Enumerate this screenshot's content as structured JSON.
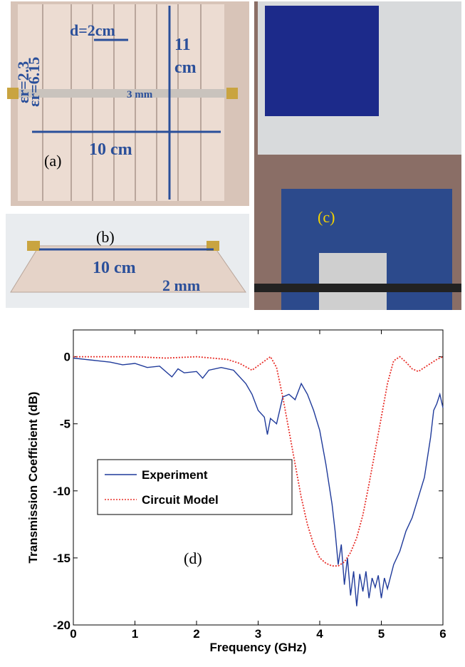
{
  "photos": {
    "a": {
      "label": "(a)",
      "spacing": "d=2cm",
      "eps1": "εr=6.15",
      "eps2": "εr=2.3",
      "strip": "3 mm",
      "height_num": "11",
      "height_unit": "cm",
      "width": "10 cm"
    },
    "b": {
      "label": "(b)",
      "width": "10 cm",
      "thickness": "2 mm"
    },
    "c": {
      "label": "(c)"
    }
  },
  "chart_data": {
    "type": "line",
    "annotation": "(d)",
    "x_label": "Frequency (GHz)",
    "y_label": "Transmission Coefficient (dB)",
    "xlim": [
      0,
      6
    ],
    "ylim": [
      -20,
      2
    ],
    "xticks": [
      0,
      1,
      2,
      3,
      4,
      5,
      6
    ],
    "yticks": [
      -20,
      -15,
      -10,
      -5,
      0
    ],
    "legend": "center-left",
    "series": [
      {
        "name": "Experiment",
        "color": "#1f3a9a",
        "style": "solid",
        "x": [
          0,
          0.2,
          0.4,
          0.6,
          0.8,
          1.0,
          1.2,
          1.4,
          1.6,
          1.7,
          1.8,
          2.0,
          2.1,
          2.2,
          2.4,
          2.6,
          2.8,
          2.9,
          3.0,
          3.1,
          3.15,
          3.2,
          3.3,
          3.4,
          3.5,
          3.6,
          3.7,
          3.8,
          3.9,
          4.0,
          4.1,
          4.2,
          4.25,
          4.3,
          4.35,
          4.4,
          4.45,
          4.5,
          4.55,
          4.6,
          4.65,
          4.7,
          4.75,
          4.8,
          4.85,
          4.9,
          4.95,
          5.0,
          5.05,
          5.1,
          5.2,
          5.3,
          5.4,
          5.5,
          5.6,
          5.7,
          5.8,
          5.85,
          5.9,
          5.95,
          6.0
        ],
        "values": [
          -0.1,
          -0.2,
          -0.3,
          -0.4,
          -0.6,
          -0.5,
          -0.8,
          -0.7,
          -1.5,
          -0.9,
          -1.2,
          -1.1,
          -1.6,
          -1.0,
          -0.8,
          -1.0,
          -2.0,
          -2.8,
          -4.0,
          -4.5,
          -5.8,
          -4.6,
          -5.0,
          -3.0,
          -2.8,
          -3.2,
          -2.0,
          -2.8,
          -4.0,
          -5.5,
          -8.0,
          -11.0,
          -13.0,
          -15.5,
          -14.0,
          -17.0,
          -15.0,
          -17.8,
          -16.0,
          -18.6,
          -16.2,
          -17.5,
          -16.0,
          -18.0,
          -16.5,
          -17.2,
          -16.3,
          -18.0,
          -16.5,
          -17.3,
          -15.5,
          -14.5,
          -13.0,
          -12.0,
          -10.5,
          -9.0,
          -6.0,
          -4.0,
          -3.5,
          -2.8,
          -3.8
        ]
      },
      {
        "name": "Circuit Model",
        "color": "#e8302a",
        "style": "dotted",
        "x": [
          0,
          0.5,
          1.0,
          1.5,
          2.0,
          2.5,
          2.7,
          2.9,
          3.05,
          3.2,
          3.3,
          3.4,
          3.5,
          3.6,
          3.7,
          3.8,
          3.9,
          4.0,
          4.1,
          4.2,
          4.3,
          4.4,
          4.5,
          4.6,
          4.7,
          4.8,
          4.9,
          5.0,
          5.1,
          5.2,
          5.3,
          5.4,
          5.5,
          5.6,
          5.7,
          5.8,
          5.9,
          6.0
        ],
        "values": [
          0,
          0,
          0,
          -0.1,
          0,
          -0.2,
          -0.5,
          -1.0,
          -0.5,
          0,
          -0.8,
          -3.0,
          -5.5,
          -8.0,
          -10.5,
          -12.5,
          -14.0,
          -15.0,
          -15.4,
          -15.6,
          -15.6,
          -15.3,
          -14.6,
          -13.5,
          -11.8,
          -9.5,
          -7.0,
          -4.5,
          -2.0,
          -0.3,
          0,
          -0.4,
          -0.9,
          -1.1,
          -0.8,
          -0.5,
          -0.2,
          0
        ]
      }
    ]
  }
}
